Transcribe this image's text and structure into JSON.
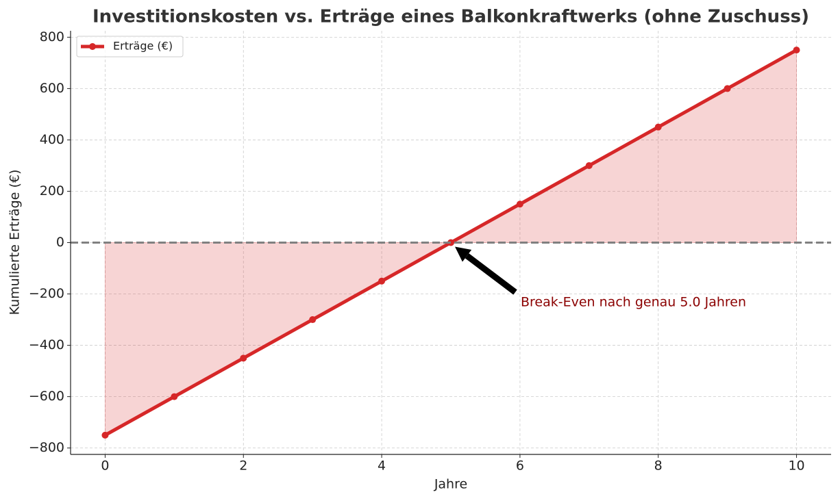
{
  "chart_data": {
    "type": "line",
    "title": "Investitionskosten vs. Erträge eines Balkonkraftwerks (ohne Zuschuss)",
    "x_label": "Jahre",
    "y_label": "Kumulierte Erträge (€)",
    "x": [
      0,
      1,
      2,
      3,
      4,
      5,
      6,
      7,
      8,
      9,
      10
    ],
    "series": [
      {
        "name": "Erträge (€)",
        "color": "#d62728",
        "values": [
          -750,
          -600,
          -450,
          -300,
          -150,
          0,
          150,
          300,
          450,
          600,
          750
        ]
      }
    ],
    "fill_to_zero": true,
    "reference_line": 0,
    "annotation": "Break-Even nach genau 5.0 Jahren",
    "xlim": [
      -0.5,
      10.5
    ],
    "xticks": [
      0,
      2,
      4,
      6,
      8,
      10
    ],
    "ylim": [
      -825,
      825
    ],
    "yticks": [
      {
        "value": -800,
        "label": "−800"
      },
      {
        "value": -600,
        "label": "−600"
      },
      {
        "value": -400,
        "label": "−400"
      },
      {
        "value": -200,
        "label": "−200"
      },
      0,
      200,
      400,
      600,
      800
    ],
    "grid": true,
    "legend": "upper left"
  }
}
